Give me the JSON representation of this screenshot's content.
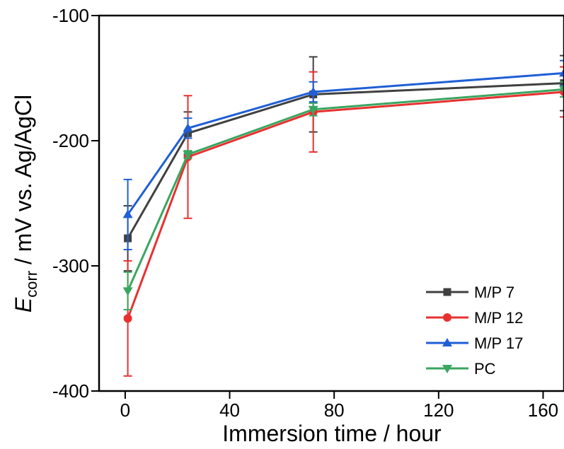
{
  "chart_data": {
    "type": "line",
    "x_label": "Immersion time / hour",
    "y_label": {
      "symbol": "E",
      "subscript": "corr",
      "rest": " / mV vs. Ag/AgCl"
    },
    "x": [
      1,
      24,
      72,
      168
    ],
    "xlim": [
      -10,
      168
    ],
    "xticks": [
      0,
      40,
      80,
      120,
      160
    ],
    "ylim": [
      -400,
      -100
    ],
    "yticks": [
      -400,
      -300,
      -200,
      -100
    ],
    "legend": "lower right",
    "series": [
      {
        "name": "M/P 7",
        "color": "#404040",
        "marker": "square",
        "values": [
          -278,
          -194,
          -163,
          -154
        ],
        "errors": [
          26,
          17,
          30,
          22
        ]
      },
      {
        "name": "M/P 12",
        "color": "#e8312f",
        "marker": "circle",
        "values": [
          -342,
          -213,
          -177,
          -161
        ],
        "errors": [
          46,
          49,
          32,
          20
        ]
      },
      {
        "name": "M/P 17",
        "color": "#1f5fd6",
        "marker": "triangle-up",
        "values": [
          -259,
          -190,
          -161,
          -146
        ],
        "errors": [
          28,
          8,
          8,
          10
        ]
      },
      {
        "name": "PC",
        "color": "#3aa660",
        "marker": "triangle-down",
        "values": [
          -320,
          -211,
          -175,
          -159
        ],
        "errors": [
          15,
          3,
          5,
          6
        ]
      }
    ]
  }
}
